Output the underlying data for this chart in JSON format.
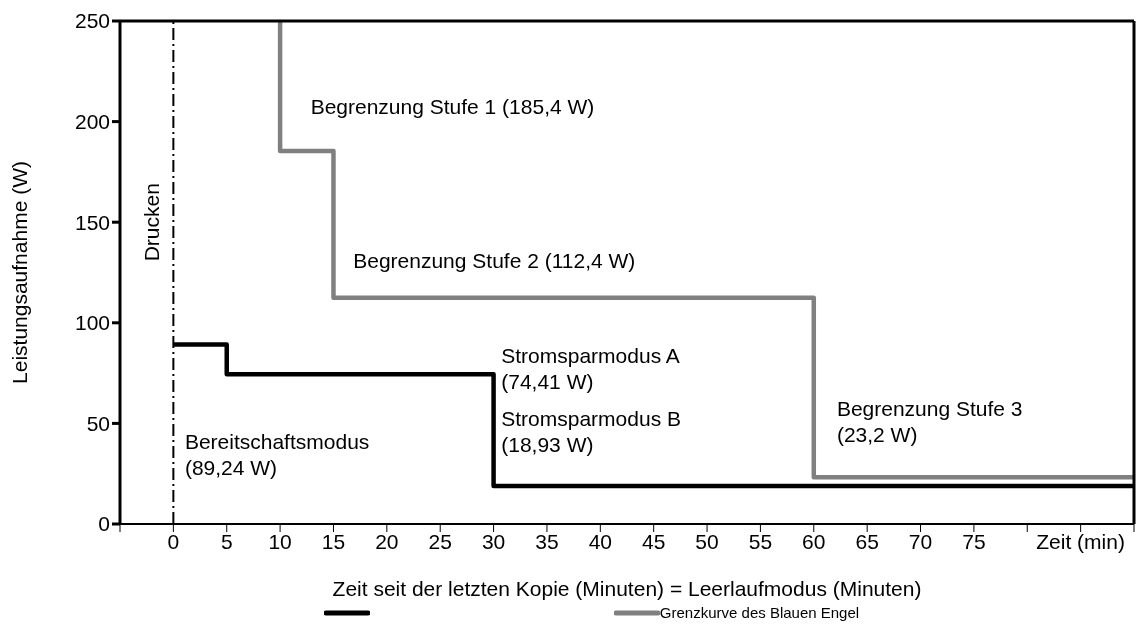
{
  "chart_data": {
    "type": "step",
    "xlabel": "Zeit seit der letzten Kopie (Minuten) = Leerlaufmodus (Minuten)",
    "ylabel": "Leistungsaufnahme (W)",
    "series": [
      {
        "color": "#000000",
        "x": [
          0,
          5,
          30,
          90
        ],
        "values": [
          89.24,
          74.41,
          18.93,
          18.93
        ]
      },
      {
        "name": "Grenzkurve des Blauen Engel",
        "color": "#808080",
        "x": [
          10,
          10,
          15,
          60,
          90
        ],
        "values": [
          250,
          185.4,
          112.4,
          23.2,
          23.2
        ]
      }
    ],
    "xlim": [
      -5,
      90
    ],
    "xticks": [
      {
        "value": -5,
        "label": null
      },
      0,
      5,
      10,
      15,
      20,
      25,
      30,
      35,
      40,
      45,
      50,
      55,
      60,
      65,
      70,
      75,
      {
        "value": 80,
        "label": null
      },
      {
        "value": 85,
        "label": "Zeit (min)"
      },
      {
        "value": 90,
        "label": null
      }
    ],
    "ylim": [
      0,
      250
    ],
    "yticks": [
      0,
      50,
      100,
      150,
      200,
      250
    ],
    "ref_lines": [
      {
        "axis": "x",
        "value": 0,
        "label": "Drucken",
        "color": "#000000",
        "line_style": "dashdot"
      }
    ],
    "annotations": [
      "Begrenzung Stufe 1 (185,4 W)",
      "Begrenzung Stufe 2 (112,4 W)",
      "Stromsparmodus A\n(74,41 W)",
      "Stromsparmodus B\n(18,93 W)",
      "Begrenzung Stufe 3\n(23,2 W)",
      "Bereitschaftsmodus\n(89,24 W)"
    ],
    "legend": "bottom",
    "marker": "none",
    "line_style": "solid"
  }
}
